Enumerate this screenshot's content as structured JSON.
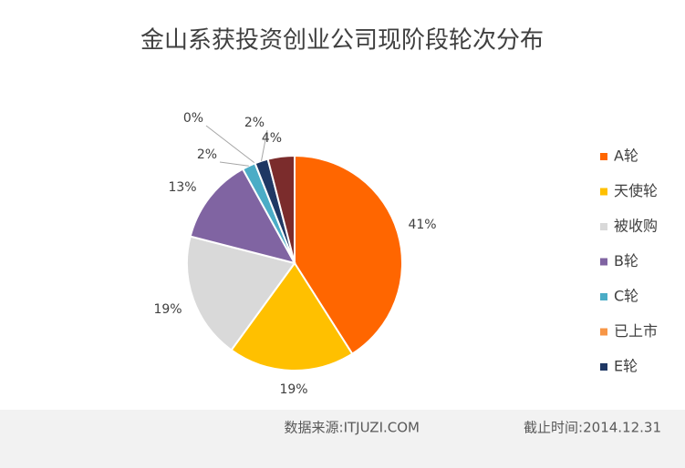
{
  "chart_data": {
    "type": "pie",
    "title": "金山系获投资创业公司现阶段轮次分布",
    "categories": [
      "A轮",
      "天使轮",
      "被收购",
      "B轮",
      "C轮",
      "已上市",
      "E轮",
      null
    ],
    "values": [
      41,
      19,
      19,
      13,
      2,
      0,
      2,
      4
    ],
    "value_labels": [
      "41%",
      "19%",
      "19%",
      "13%",
      "2%",
      "0%",
      "2%",
      "4%"
    ],
    "colors": [
      "#ff6600",
      "#ffc000",
      "#d9d9d9",
      "#8064a2",
      "#4bacc6",
      "#f79646",
      "#1f3864",
      "#7b2c2c"
    ],
    "legend": "right",
    "source": "数据来源:ITJUZI.COM",
    "date": "截止时间:2014.12.31"
  }
}
